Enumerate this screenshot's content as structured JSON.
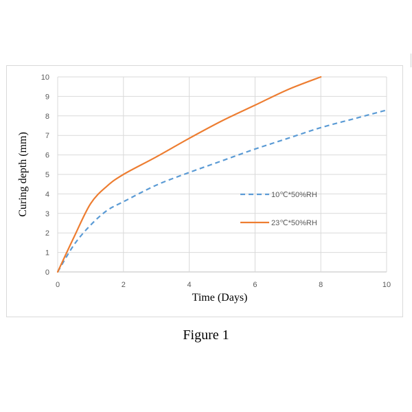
{
  "figure_caption": "Figure 1",
  "chart_data": {
    "type": "line",
    "xlabel": "Time (Days)",
    "ylabel": "Curing depth (mm)",
    "xlim": [
      0,
      10
    ],
    "ylim": [
      0,
      10
    ],
    "xticks": [
      0,
      2,
      4,
      6,
      8,
      10
    ],
    "yticks": [
      0,
      1,
      2,
      3,
      4,
      5,
      6,
      7,
      8,
      9,
      10
    ],
    "grid": true,
    "legend_position": "right-center",
    "series": [
      {
        "name": "10℃*50%RH",
        "color": "#5b9bd5",
        "dash": "dashed",
        "x": [
          0,
          0.5,
          1,
          1.5,
          2,
          3,
          4,
          5,
          6,
          7,
          8,
          9,
          10
        ],
        "y": [
          0,
          1.4,
          2.4,
          3.15,
          3.6,
          4.45,
          5.1,
          5.7,
          6.3,
          6.85,
          7.4,
          7.85,
          8.3
        ]
      },
      {
        "name": "23℃*50%RH",
        "color": "#ed7d31",
        "dash": "solid",
        "x": [
          0,
          0.5,
          1,
          1.5,
          2,
          3,
          4,
          5,
          6,
          7,
          8
        ],
        "y": [
          0,
          1.8,
          3.5,
          4.4,
          5.0,
          5.9,
          6.85,
          7.75,
          8.55,
          9.35,
          10.0
        ]
      }
    ]
  }
}
